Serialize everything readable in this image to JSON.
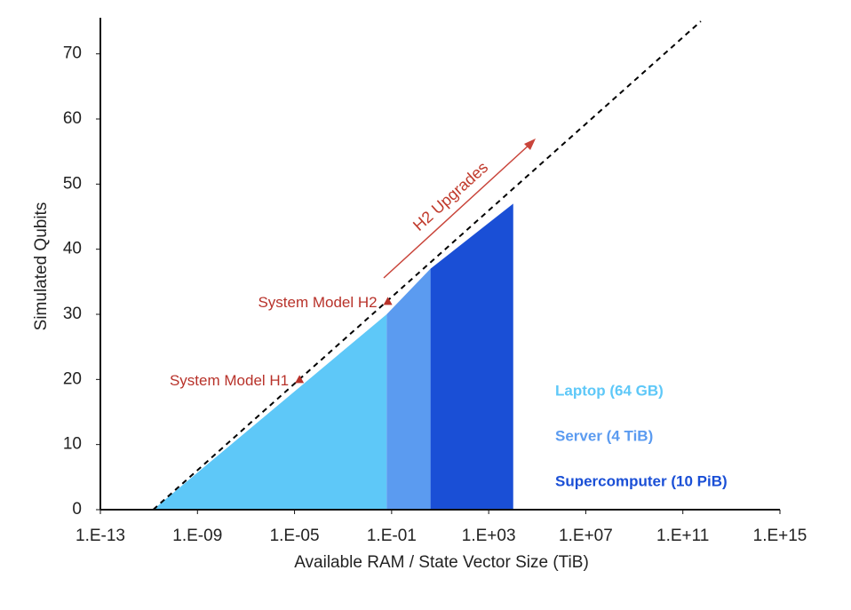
{
  "chart_data": {
    "type": "area",
    "x_label": "Available RAM / State Vector Size (TiB)",
    "y_label": "Simulated Qubits",
    "xscale": "log",
    "xlim": [
      1e-13,
      1000000000000000.0
    ],
    "ylim": [
      0,
      75
    ],
    "xticks": [
      {
        "value": 1e-13,
        "label": "1.E-13"
      },
      {
        "value": 1e-09,
        "label": "1.E-09"
      },
      {
        "value": 1e-05,
        "label": "1.E-05"
      },
      {
        "value": 0.1,
        "label": "1.E-01"
      },
      {
        "value": 1000,
        "label": "1.E+03"
      },
      {
        "value": 10000000.0,
        "label": "1.E+07"
      },
      {
        "value": 100000000000.0,
        "label": "1.E+11"
      },
      {
        "value": 1000000000000000.0,
        "label": "1.E+15"
      }
    ],
    "yticks": [
      0,
      10,
      20,
      30,
      40,
      50,
      60,
      70
    ],
    "series": [
      {
        "name": "Laptop (64 GB)",
        "type": "area",
        "color": "#5ec8f8",
        "x": [
          1.5e-11,
          0.0625
        ],
        "values": [
          0,
          30
        ]
      },
      {
        "name": "Server (4 TiB)",
        "type": "area",
        "color": "#5b9bf0",
        "x": [
          0.0625,
          4
        ],
        "values": [
          30,
          37
        ]
      },
      {
        "name": "Supercomputer (10 PiB)",
        "type": "area",
        "color": "#1a4fd6",
        "x": [
          4,
          10240
        ],
        "values": [
          37,
          47
        ]
      },
      {
        "type": "line",
        "color": "#000000",
        "dashed": true,
        "x": [
          1.5e-11,
          550000000000.0
        ],
        "values": [
          0,
          75
        ]
      },
      {
        "name": "System Model H1",
        "type": "scatter",
        "color": "#b8322a",
        "x": [
          1.6e-05
        ],
        "values": [
          20
        ]
      },
      {
        "name": "System Model H2",
        "type": "scatter",
        "color": "#b8322a",
        "x": [
          0.07
        ],
        "values": [
          32
        ]
      }
    ],
    "annotation": "H2 Upgrades"
  }
}
